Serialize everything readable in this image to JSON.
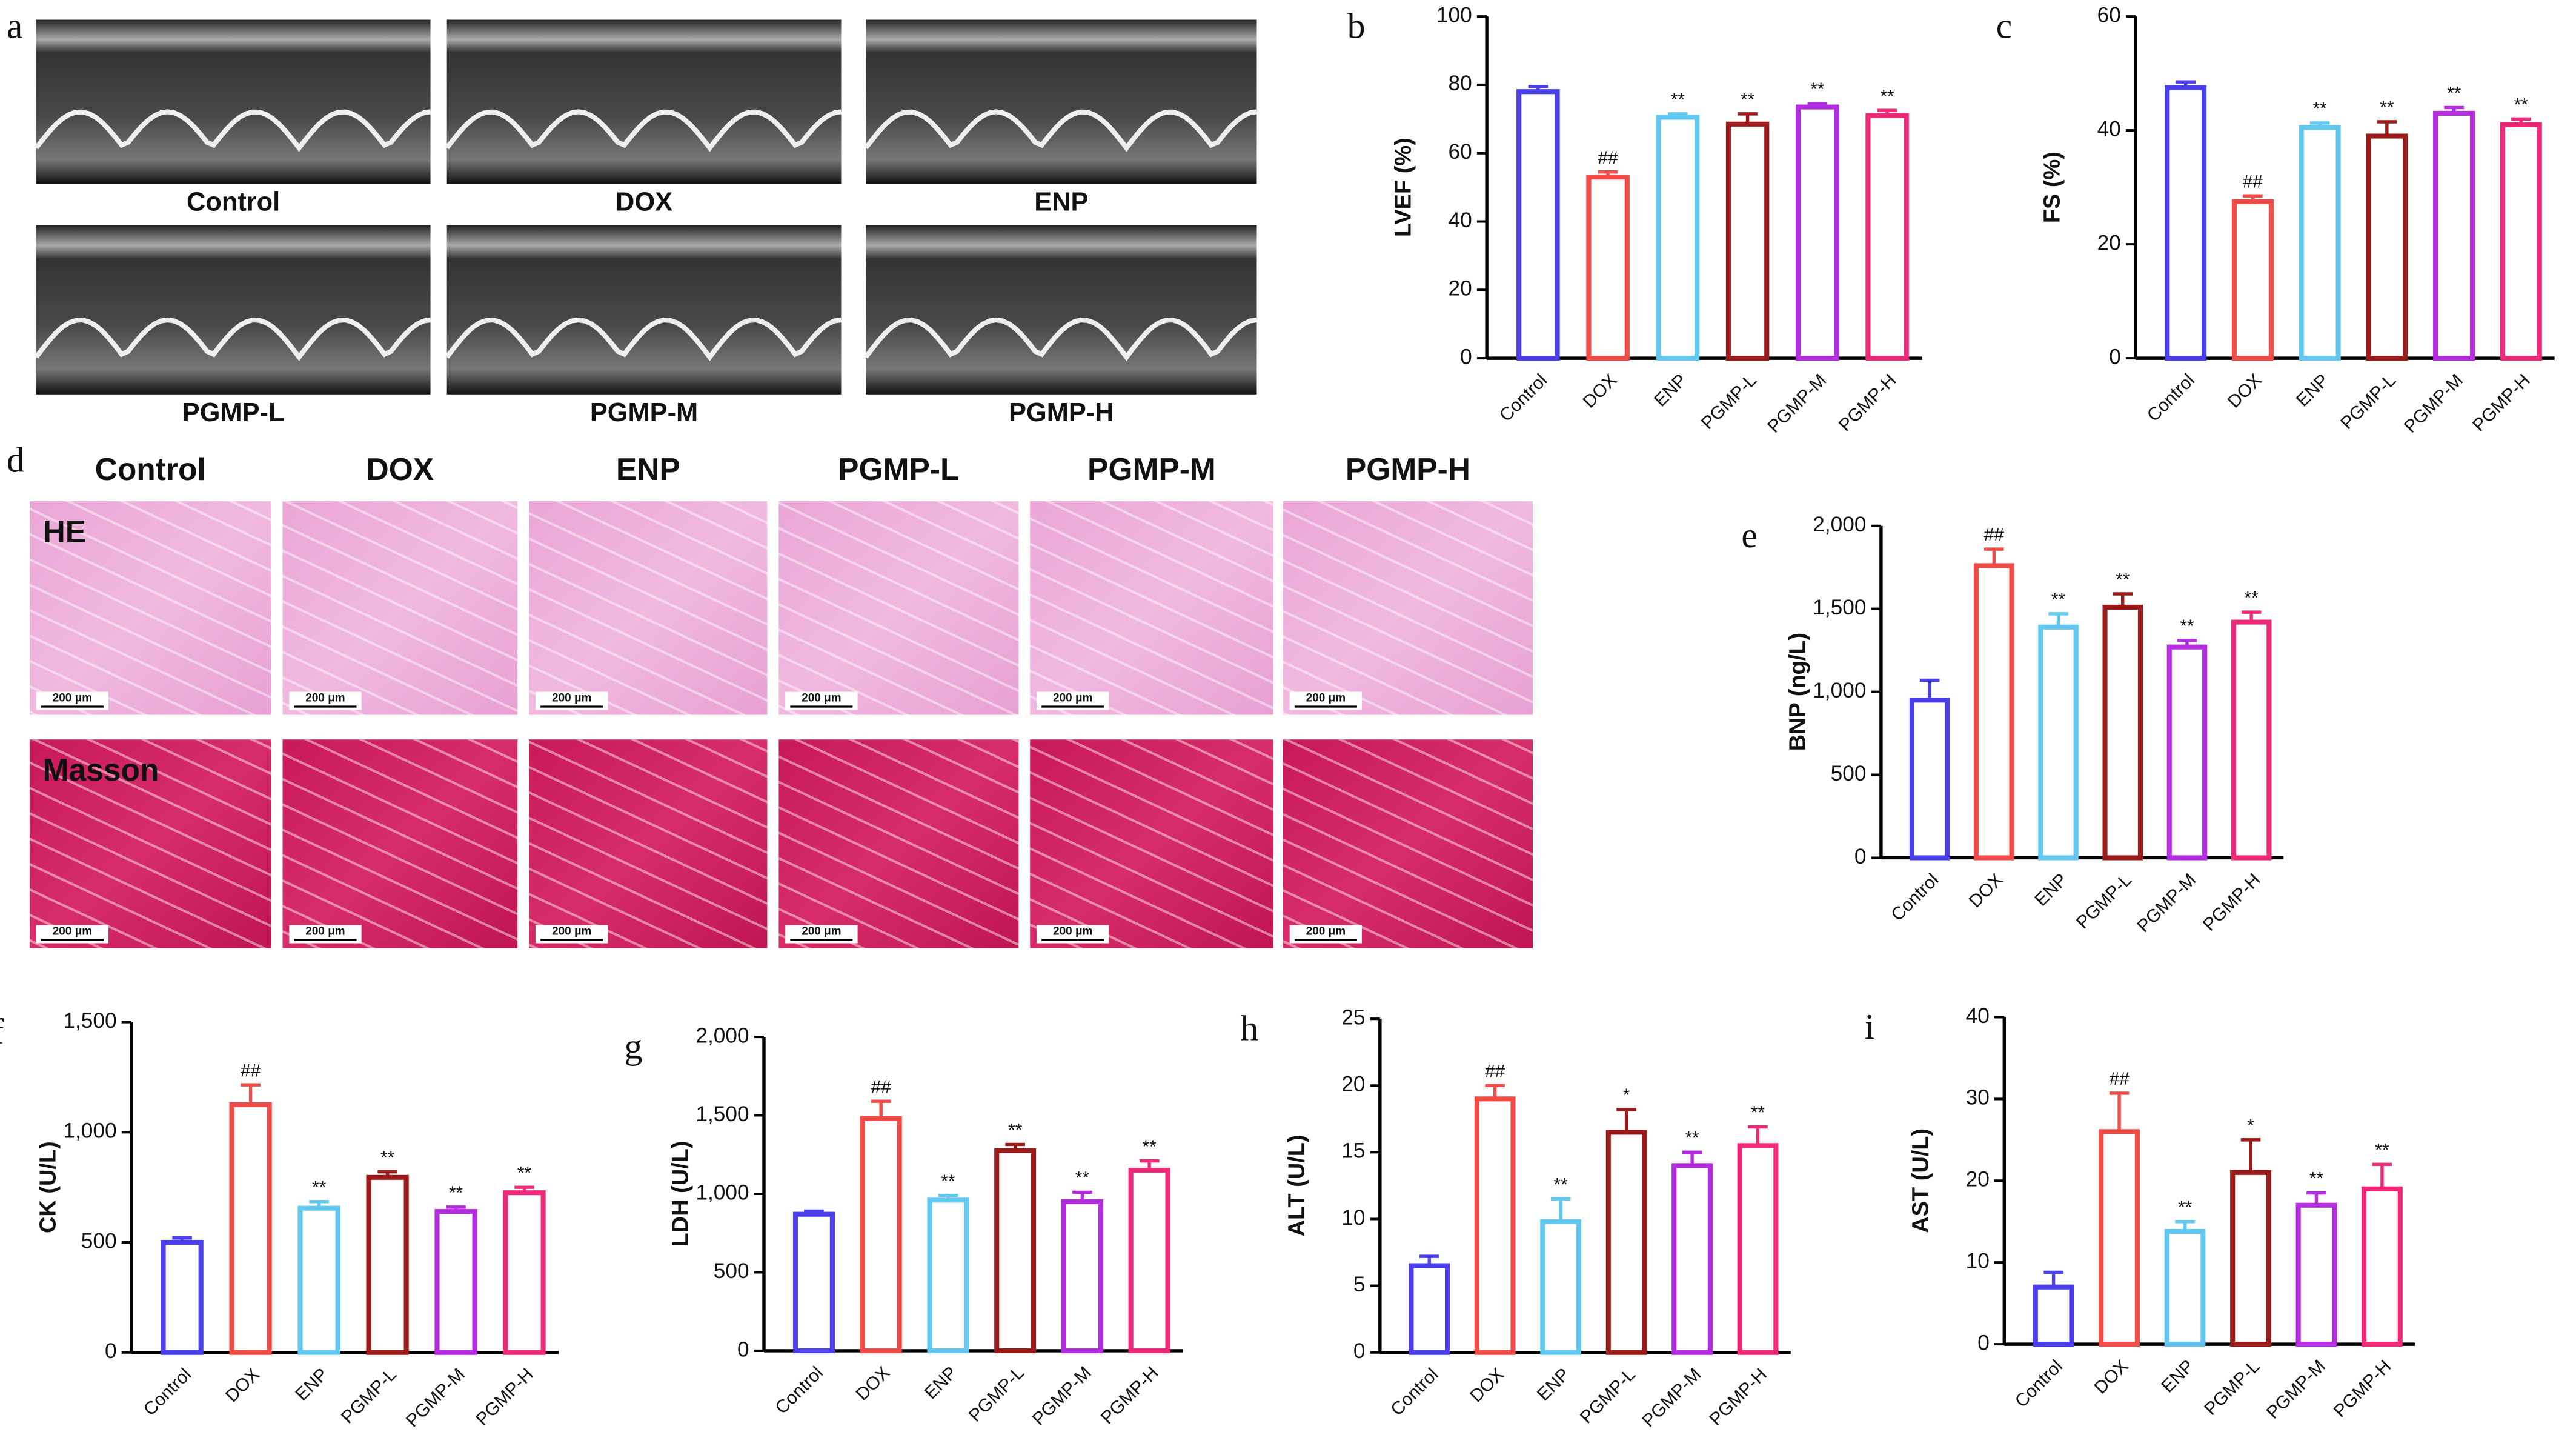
{
  "panel_a": {
    "letter": "a",
    "labels": [
      "Control",
      "DOX",
      "ENP",
      "PGMP-L",
      "PGMP-M",
      "PGMP-H"
    ]
  },
  "panel_d": {
    "letter": "d",
    "columns": [
      "Control",
      "DOX",
      "ENP",
      "PGMP-L",
      "PGMP-M",
      "PGMP-H"
    ],
    "rows": [
      "HE",
      "Masson"
    ],
    "scale_bar": "200 μm"
  },
  "chart_data": [
    {
      "type": "bar",
      "letter": "b",
      "ylabel": "LVEF (%)",
      "categories": [
        "Control",
        "DOX",
        "ENP",
        "PGMP-L",
        "PGMP-M",
        "PGMP-H"
      ],
      "values": [
        78,
        53,
        70.5,
        68.5,
        73.5,
        71
      ],
      "errors": [
        1.5,
        1.5,
        1,
        3,
        1,
        1.5
      ],
      "annotations": [
        null,
        "##",
        "**",
        "**",
        "**",
        "**"
      ],
      "colors": [
        "#4a3fe8",
        "#ef4b47",
        "#63c8ef",
        "#9b1b1b",
        "#b42ce0",
        "#ee2a78"
      ],
      "ylim": [
        0,
        100
      ],
      "yticks": [
        0,
        20,
        40,
        60,
        80,
        100
      ]
    },
    {
      "type": "bar",
      "letter": "c",
      "ylabel": "FS (%)",
      "categories": [
        "Control",
        "DOX",
        "ENP",
        "PGMP-L",
        "PGMP-M",
        "PGMP-H"
      ],
      "values": [
        47.5,
        27.5,
        40.5,
        39,
        43,
        41
      ],
      "errors": [
        1,
        1,
        0.8,
        2.5,
        1,
        1
      ],
      "annotations": [
        null,
        "##",
        "**",
        "**",
        "**",
        "**"
      ],
      "colors": [
        "#4a3fe8",
        "#ef4b47",
        "#63c8ef",
        "#9b1b1b",
        "#b42ce0",
        "#ee2a78"
      ],
      "ylim": [
        0,
        60
      ],
      "yticks": [
        0,
        20,
        40,
        60
      ]
    },
    {
      "type": "bar",
      "letter": "e",
      "ylabel": "BNP (ng/L)",
      "categories": [
        "Control",
        "DOX",
        "ENP",
        "PGMP-L",
        "PGMP-M",
        "PGMP-H"
      ],
      "values": [
        950,
        1760,
        1390,
        1510,
        1270,
        1420
      ],
      "errors": [
        120,
        100,
        80,
        80,
        40,
        60
      ],
      "annotations": [
        null,
        "##",
        "**",
        "**",
        "**",
        "**"
      ],
      "colors": [
        "#4a3fe8",
        "#ef4b47",
        "#63c8ef",
        "#9b1b1b",
        "#b42ce0",
        "#ee2a78"
      ],
      "ylim": [
        0,
        2000
      ],
      "yticks": [
        0,
        500,
        {
          "value": 1000,
          "label": "1,000"
        },
        {
          "value": 1500,
          "label": "1,500"
        },
        {
          "value": 2000,
          "label": "2,000"
        }
      ]
    },
    {
      "type": "bar",
      "letter": "f",
      "ylabel": "CK (U/L)",
      "categories": [
        "Control",
        "DOX",
        "ENP",
        "PGMP-L",
        "PGMP-M",
        "PGMP-H"
      ],
      "values": [
        500,
        1125,
        655,
        795,
        640,
        725
      ],
      "errors": [
        20,
        90,
        30,
        25,
        20,
        25
      ],
      "annotations": [
        null,
        "##",
        "**",
        "**",
        "**",
        "**"
      ],
      "colors": [
        "#4a3fe8",
        "#ef4b47",
        "#63c8ef",
        "#9b1b1b",
        "#b42ce0",
        "#ee2a78"
      ],
      "ylim": [
        0,
        1500
      ],
      "yticks": [
        0,
        500,
        {
          "value": 1000,
          "label": "1,000"
        },
        {
          "value": 1500,
          "label": "1,500"
        }
      ]
    },
    {
      "type": "bar",
      "letter": "g",
      "ylabel": "LDH (U/L)",
      "categories": [
        "Control",
        "DOX",
        "ENP",
        "PGMP-L",
        "PGMP-M",
        "PGMP-H"
      ],
      "values": [
        870,
        1480,
        960,
        1275,
        950,
        1150
      ],
      "errors": [
        20,
        110,
        30,
        40,
        60,
        60
      ],
      "annotations": [
        null,
        "##",
        "**",
        "**",
        "**",
        "**"
      ],
      "colors": [
        "#4a3fe8",
        "#ef4b47",
        "#63c8ef",
        "#9b1b1b",
        "#b42ce0",
        "#ee2a78"
      ],
      "ylim": [
        0,
        2000
      ],
      "yticks": [
        0,
        500,
        {
          "value": 1000,
          "label": "1,000"
        },
        {
          "value": 1500,
          "label": "1,500"
        },
        {
          "value": 2000,
          "label": "2,000"
        }
      ]
    },
    {
      "type": "bar",
      "letter": "h",
      "ylabel": "ALT (U/L)",
      "categories": [
        "Control",
        "DOX",
        "ENP",
        "PGMP-L",
        "PGMP-M",
        "PGMP-H"
      ],
      "values": [
        6.5,
        19,
        9.8,
        16.5,
        14,
        15.5
      ],
      "errors": [
        0.7,
        1,
        1.7,
        1.7,
        1,
        1.4
      ],
      "annotations": [
        null,
        "##",
        "**",
        "*",
        "**",
        "**"
      ],
      "colors": [
        "#4a3fe8",
        "#ef4b47",
        "#63c8ef",
        "#9b1b1b",
        "#b42ce0",
        "#ee2a78"
      ],
      "ylim": [
        0,
        25
      ],
      "yticks": [
        0,
        5,
        10,
        15,
        20,
        25
      ]
    },
    {
      "type": "bar",
      "letter": "i",
      "ylabel": "AST (U/L)",
      "categories": [
        "Control",
        "DOX",
        "ENP",
        "PGMP-L",
        "PGMP-M",
        "PGMP-H"
      ],
      "values": [
        7,
        26,
        13.8,
        21,
        17,
        19
      ],
      "errors": [
        1.8,
        4.7,
        1.2,
        4,
        1.5,
        3
      ],
      "annotations": [
        null,
        "##",
        "**",
        "*",
        "**",
        "**"
      ],
      "colors": [
        "#4a3fe8",
        "#ef4b47",
        "#63c8ef",
        "#9b1b1b",
        "#b42ce0",
        "#ee2a78"
      ],
      "ylim": [
        0,
        40
      ],
      "yticks": [
        0,
        10,
        20,
        30,
        40
      ]
    }
  ]
}
